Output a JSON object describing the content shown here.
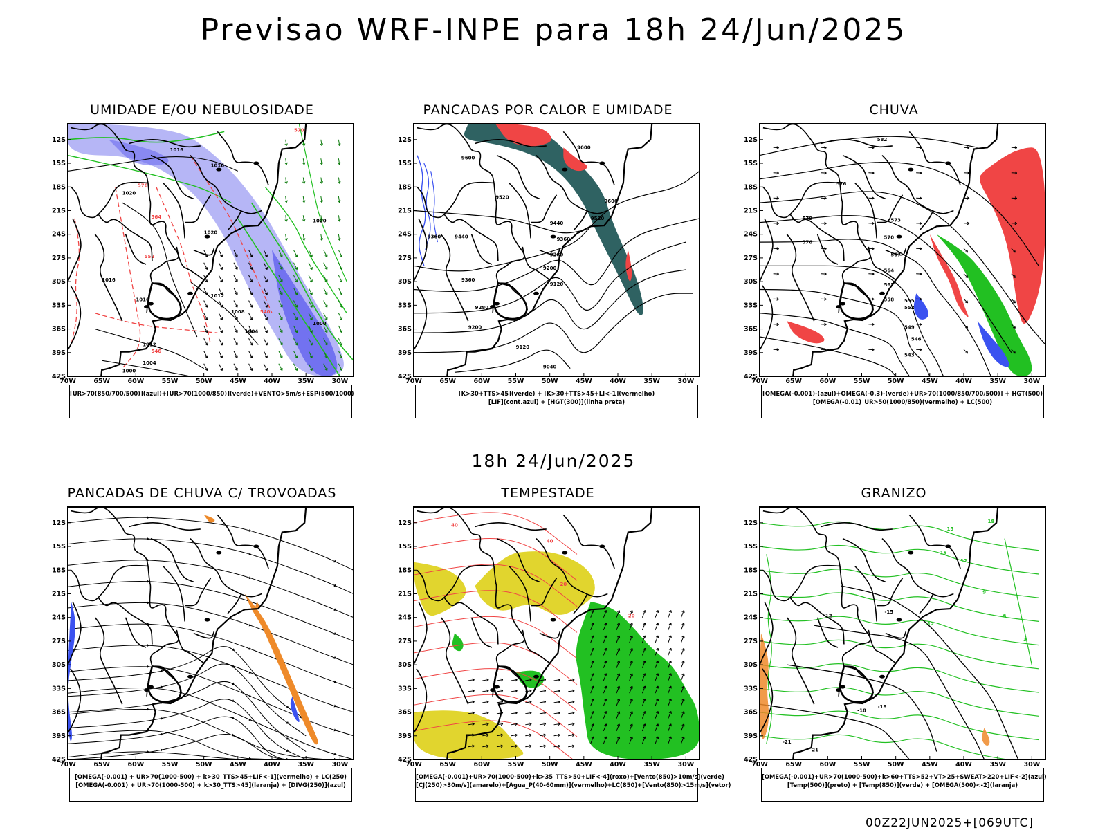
{
  "header": {
    "title": "Previsao WRF-INPE  para 18h 24/Jun/2025",
    "mid_time": "18h 24/Jun/2025",
    "run_info": "00Z22JUN2025+[069UTC]"
  },
  "axes": {
    "lat_labels": [
      "12S",
      "15S",
      "18S",
      "21S",
      "24S",
      "27S",
      "30S",
      "33S",
      "36S",
      "39S",
      "42S"
    ],
    "lon_labels": [
      "70W",
      "65W",
      "60W",
      "55W",
      "50W",
      "45W",
      "40W",
      "35W",
      "30W"
    ]
  },
  "colors": {
    "humidity_blue": "#a9a9f5",
    "humidity_blue_dark": "#6a6af0",
    "green": "#22c022",
    "red": "#f04545",
    "dark_teal": "#2f6262",
    "yellow": "#e1d52e",
    "orange": "#ee8a2a",
    "blue": "#3b52f0"
  },
  "panels": [
    {
      "title": "UMIDADE E/OU NEBULOSIDADE",
      "legend": [
        "[UR>70(850/700/500)](azul)+[UR>70(1000/850)](verde)+VENTO>5m/s+ESP(500/1000)"
      ],
      "contour_labels": [
        "1016",
        "1016",
        "1020",
        "1020",
        "1016",
        "1012",
        "1008",
        "1004",
        "1000",
        "1012",
        "1004",
        "1000",
        "1016",
        "1020",
        "552",
        "564",
        "576",
        "570",
        "540",
        "546"
      ]
    },
    {
      "title": "PANCADAS POR CALOR E UMIDADE",
      "legend": [
        "[K>30+TTS>45](verde) + [K>30+TTS>45+LI<-1](vermelho)",
        "[LIF](cont.azul) + [HGT(300)](linha preta)"
      ],
      "contour_labels": [
        "9600",
        "9600",
        "9520",
        "9440",
        "9360",
        "9280",
        "9200",
        "9120",
        "9040",
        "9440",
        "9360",
        "9280",
        "9200",
        "9120",
        "9360",
        "9520",
        "9600"
      ]
    },
    {
      "title": "CHUVA",
      "legend": [
        "[OMEGA(-0.001)-(azul)+OMEGA(-0.3)-(verde)+UR>70(1000/850/700/500)] + HGT(500)",
        "[OMEGA(-0.01)_UR>50(1000/850)(vermelho) + LC(500)"
      ],
      "contour_labels": [
        "582",
        "576",
        "573",
        "570",
        "567",
        "564",
        "561",
        "558",
        "555",
        "552",
        "549",
        "546",
        "543",
        "579",
        "576"
      ]
    },
    {
      "title": "PANCADAS DE CHUVA C/ TROVOADAS",
      "legend": [
        "[OMEGA(-0.001) + UR>70(1000-500) + k>30_TTS>45+LIF<-1](vermelho) + LC(250)",
        "[OMEGA(-0.001) + UR>70(1000-500) + k>30_TTS>45](laranja) + [DIVG(250)](azul)"
      ],
      "contour_labels": []
    },
    {
      "title": "TEMPESTADE",
      "legend": [
        "[OMEGA(-0.001)+UR>70(1000-500)+k>35_TTS>50+LIF<-4](roxo)+[Vento(850)>10m/s](verde)",
        "[CJ(250)>30m/s](amarelo)+[Agua_P(40-60mm)](vermelho)+LC(850)+[Vento(850)>15m/s](vetor)"
      ],
      "contour_labels": [
        "40",
        "40",
        "20",
        "20"
      ]
    },
    {
      "title": "GRANIZO",
      "legend": [
        "[OMEGA(-0.001)+UR>70(1000-500)+k>60+TTS>52+VT>25+SWEAT>220+LIF<-2](azul)",
        "[Temp(500)](preto) + [Temp(850)](verde) + [OMEGA(500)<-2](laranja)"
      ],
      "contour_labels": [
        "-12",
        "-15",
        "-18",
        "-21",
        "-12",
        "15",
        "12",
        "9",
        "6",
        "3",
        "-18",
        "-21",
        "15",
        "18"
      ]
    }
  ]
}
